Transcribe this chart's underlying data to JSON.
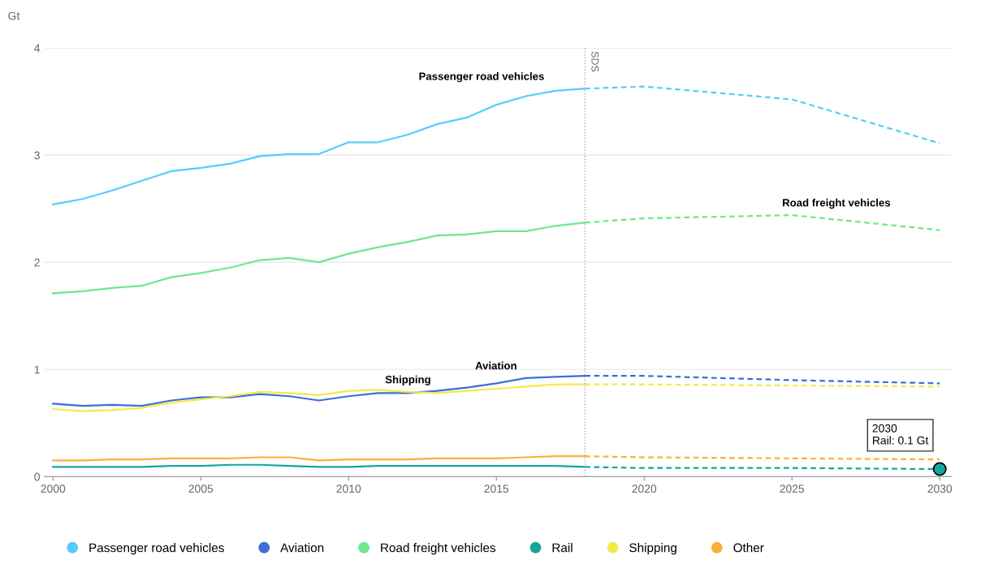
{
  "chart_data": {
    "type": "line",
    "ylabel": "Gt",
    "xlim": [
      1999.7,
      2030.4
    ],
    "xticks": [
      2000,
      2005,
      2010,
      2015,
      2020,
      2025,
      2030
    ],
    "ylim": [
      0,
      4
    ],
    "yticks": [
      0,
      1,
      2,
      3,
      4
    ],
    "grid": "y",
    "legend": "bottom",
    "marker": "none",
    "series": [
      {
        "name": "Passenger road vehicles",
        "color": "#55cdfb",
        "line_style": "solid",
        "x": [
          2000,
          2001,
          2002,
          2003,
          2004,
          2005,
          2006,
          2007,
          2008,
          2009,
          2010,
          2011,
          2012,
          2013,
          2014,
          2015,
          2016,
          2017,
          2018
        ],
        "values": [
          2.54,
          2.59,
          2.67,
          2.76,
          2.85,
          2.88,
          2.92,
          2.99,
          3.01,
          3.01,
          3.12,
          3.12,
          3.19,
          3.29,
          3.35,
          3.47,
          3.55,
          3.6,
          3.62
        ]
      },
      {
        "name": "Aviation",
        "color": "#3b6fd8",
        "line_style": "solid",
        "x": [
          2000,
          2001,
          2002,
          2003,
          2004,
          2005,
          2006,
          2007,
          2008,
          2009,
          2010,
          2011,
          2012,
          2013,
          2014,
          2015,
          2016,
          2017,
          2018
        ],
        "values": [
          0.68,
          0.66,
          0.67,
          0.66,
          0.71,
          0.74,
          0.74,
          0.77,
          0.75,
          0.71,
          0.75,
          0.78,
          0.78,
          0.8,
          0.83,
          0.87,
          0.92,
          0.93,
          0.94
        ]
      },
      {
        "name": "Road freight vehicles",
        "color": "#6ee88a",
        "line_style": "solid",
        "x": [
          2000,
          2001,
          2002,
          2003,
          2004,
          2005,
          2006,
          2007,
          2008,
          2009,
          2010,
          2011,
          2012,
          2013,
          2014,
          2015,
          2016,
          2017,
          2018
        ],
        "values": [
          1.71,
          1.73,
          1.76,
          1.78,
          1.86,
          1.9,
          1.95,
          2.02,
          2.04,
          2.0,
          2.08,
          2.14,
          2.19,
          2.25,
          2.26,
          2.29,
          2.29,
          2.34,
          2.37
        ]
      },
      {
        "name": "Rail",
        "color": "#13a89a",
        "line_style": "solid",
        "x": [
          2000,
          2001,
          2002,
          2003,
          2004,
          2005,
          2006,
          2007,
          2008,
          2009,
          2010,
          2011,
          2012,
          2013,
          2014,
          2015,
          2016,
          2017,
          2018
        ],
        "values": [
          0.09,
          0.09,
          0.09,
          0.09,
          0.1,
          0.1,
          0.11,
          0.11,
          0.1,
          0.09,
          0.09,
          0.1,
          0.1,
          0.1,
          0.1,
          0.1,
          0.1,
          0.1,
          0.09
        ]
      },
      {
        "name": "Shipping",
        "color": "#f5e94a",
        "line_style": "solid",
        "x": [
          2000,
          2001,
          2002,
          2003,
          2004,
          2005,
          2006,
          2007,
          2008,
          2009,
          2010,
          2011,
          2012,
          2013,
          2014,
          2015,
          2016,
          2017,
          2018
        ],
        "values": [
          0.63,
          0.61,
          0.62,
          0.64,
          0.69,
          0.72,
          0.75,
          0.79,
          0.78,
          0.76,
          0.8,
          0.81,
          0.79,
          0.78,
          0.8,
          0.82,
          0.84,
          0.86,
          0.86
        ]
      },
      {
        "name": "Other",
        "color": "#f9b13a",
        "line_style": "solid",
        "x": [
          2000,
          2001,
          2002,
          2003,
          2004,
          2005,
          2006,
          2007,
          2008,
          2009,
          2010,
          2011,
          2012,
          2013,
          2014,
          2015,
          2016,
          2017,
          2018
        ],
        "values": [
          0.15,
          0.15,
          0.16,
          0.16,
          0.17,
          0.17,
          0.17,
          0.18,
          0.18,
          0.15,
          0.16,
          0.16,
          0.16,
          0.17,
          0.17,
          0.17,
          0.18,
          0.19,
          0.19
        ]
      },
      {
        "color": "#55cdfb",
        "line_style": "dashed",
        "x": [
          2018,
          2020,
          2025,
          2030
        ],
        "values": [
          3.62,
          3.64,
          3.52,
          3.11
        ]
      },
      {
        "color": "#3b6fd8",
        "line_style": "dashed",
        "x": [
          2018,
          2020,
          2025,
          2030
        ],
        "values": [
          0.94,
          0.94,
          0.9,
          0.87
        ]
      },
      {
        "color": "#6ee88a",
        "line_style": "dashed",
        "x": [
          2018,
          2020,
          2025,
          2030
        ],
        "values": [
          2.37,
          2.41,
          2.44,
          2.3
        ]
      },
      {
        "color": "#13a89a",
        "line_style": "dashed",
        "x": [
          2018,
          2020,
          2025,
          2030
        ],
        "values": [
          0.09,
          0.08,
          0.08,
          0.07
        ]
      },
      {
        "color": "#f5e94a",
        "line_style": "dashed",
        "x": [
          2018,
          2020,
          2025,
          2030
        ],
        "values": [
          0.86,
          0.86,
          0.85,
          0.84
        ]
      },
      {
        "color": "#f9b13a",
        "line_style": "dashed",
        "x": [
          2018,
          2020,
          2025,
          2030
        ],
        "values": [
          0.19,
          0.18,
          0.17,
          0.16
        ]
      }
    ],
    "ref_lines": [
      {
        "axis": "x",
        "value": 2018,
        "label": "SDS",
        "color": "#aaaaaa",
        "line_style": "dotted"
      }
    ],
    "annotations": [
      "Passenger road vehicles",
      "Road freight vehicles",
      "Shipping",
      "Aviation",
      {
        "text": "2030\nRail: 0.1 Gt",
        "x": 2030,
        "y": 0.07
      }
    ]
  }
}
